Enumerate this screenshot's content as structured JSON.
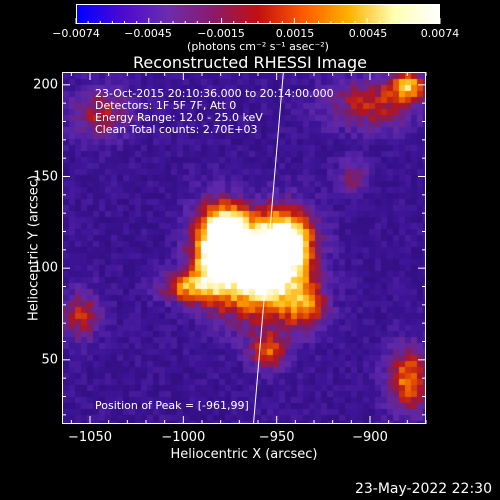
{
  "colorbar": {
    "tick_labels": [
      "−0.0074",
      "−0.0045",
      "−0.0015",
      "0.0015",
      "0.0045",
      "0.0074"
    ],
    "units": "(photons cm⁻² s⁻¹ asec⁻²)",
    "range": [
      -0.0074,
      0.0074
    ],
    "colors": [
      "#0000ff",
      "#4b0ad0",
      "#6a2cb0",
      "#8c1a6a",
      "#c01010",
      "#ff5a00",
      "#ffb000",
      "#ffffb0",
      "#ffffff"
    ]
  },
  "chart_data": {
    "type": "heatmap",
    "title": "Reconstructed RHESSI Image",
    "xlabel": "Heliocentric X (arcsec)",
    "ylabel": "Heliocentric Y (arcsec)",
    "xlim": [
      -1065,
      -870
    ],
    "ylim": [
      15,
      207
    ],
    "x_ticks": [
      -1050,
      -1000,
      -950,
      -900
    ],
    "x_tick_labels": [
      "−1050",
      "−1000",
      "−950",
      "−900"
    ],
    "y_ticks": [
      50,
      100,
      150,
      200
    ],
    "y_tick_labels": [
      "50",
      "100",
      "150",
      "200"
    ],
    "peak": [
      -961,
      99
    ],
    "annotations": {
      "time": "23-Oct-2015 20:10:36.000 to 20:14:00.000",
      "detectors": "Detectors: 1F 5F 7F, Att 0",
      "energy": "Energy Range: 12.0 - 25.0 keV",
      "clean": "Clean     Total counts: 2.70E+03",
      "peak_text": "Position of Peak = [-961,99]"
    },
    "limb_line": {
      "x": [
        -963,
        -947
      ],
      "y": [
        15,
        207
      ]
    }
  },
  "footer": {
    "date": "23-May-2022 22:30"
  }
}
